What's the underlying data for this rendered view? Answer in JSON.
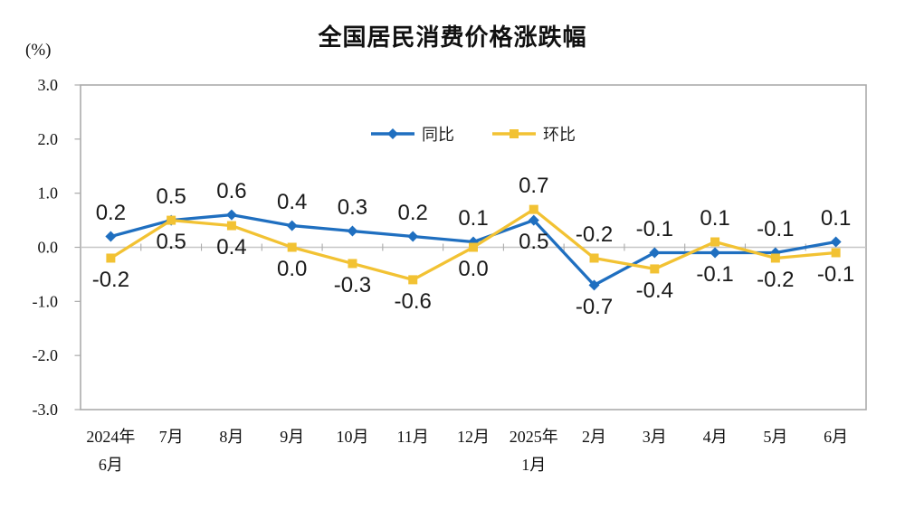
{
  "chart_data": {
    "type": "line",
    "title": "全国居民消费价格涨跌幅",
    "ylabel": "(%)",
    "ylim": [
      -3.0,
      3.0
    ],
    "ytick_step": 1.0,
    "grid": false,
    "legend_position": "top-center-inside",
    "yticks": [
      {
        "label": "3.0",
        "value": 3
      },
      {
        "label": "2.0",
        "value": 2
      },
      {
        "label": "1.0",
        "value": 1
      },
      {
        "label": "0.0",
        "value": 0
      },
      {
        "label": "-1.0",
        "value": -1
      },
      {
        "label": "-2.0",
        "value": -2
      },
      {
        "label": "-3.0",
        "value": -3
      }
    ],
    "categories": [
      "2024年6月",
      "7月",
      "8月",
      "9月",
      "10月",
      "11月",
      "12月",
      "2025年1月",
      "2月",
      "3月",
      "4月",
      "5月",
      "6月"
    ],
    "category_label_lines": [
      [
        "2024年",
        "6月"
      ],
      [
        "7月"
      ],
      [
        "8月"
      ],
      [
        "9月"
      ],
      [
        "10月"
      ],
      [
        "11月"
      ],
      [
        "12月"
      ],
      [
        "2025年",
        "1月"
      ],
      [
        "2月"
      ],
      [
        "3月"
      ],
      [
        "4月"
      ],
      [
        "5月"
      ],
      [
        "6月"
      ]
    ],
    "series": [
      {
        "name": "同比",
        "marker": "diamond",
        "color": "#1F6FC0",
        "values": [
          0.2,
          0.5,
          0.6,
          0.4,
          0.3,
          0.2,
          0.1,
          0.5,
          -0.7,
          -0.1,
          -0.1,
          -0.1,
          0.1
        ],
        "label_side": [
          "above",
          "above",
          "above",
          "above",
          "above",
          "above",
          "above",
          "below",
          "below",
          "above",
          "below",
          "above",
          "above"
        ]
      },
      {
        "name": "环比",
        "marker": "square",
        "color": "#F2C233",
        "values": [
          -0.2,
          0.5,
          0.4,
          0.0,
          -0.3,
          -0.6,
          0.0,
          0.7,
          -0.2,
          -0.4,
          0.1,
          -0.2,
          -0.1
        ],
        "label_side": [
          "below",
          "below",
          "below",
          "below",
          "below",
          "below",
          "below",
          "above",
          "above",
          "below",
          "above",
          "below",
          "below"
        ]
      }
    ]
  },
  "colors": {
    "axis_border": "#ABABAB",
    "zero_line": "#C6C6C6",
    "label_text": "#1a1a1a",
    "axis_text": "#111111"
  }
}
